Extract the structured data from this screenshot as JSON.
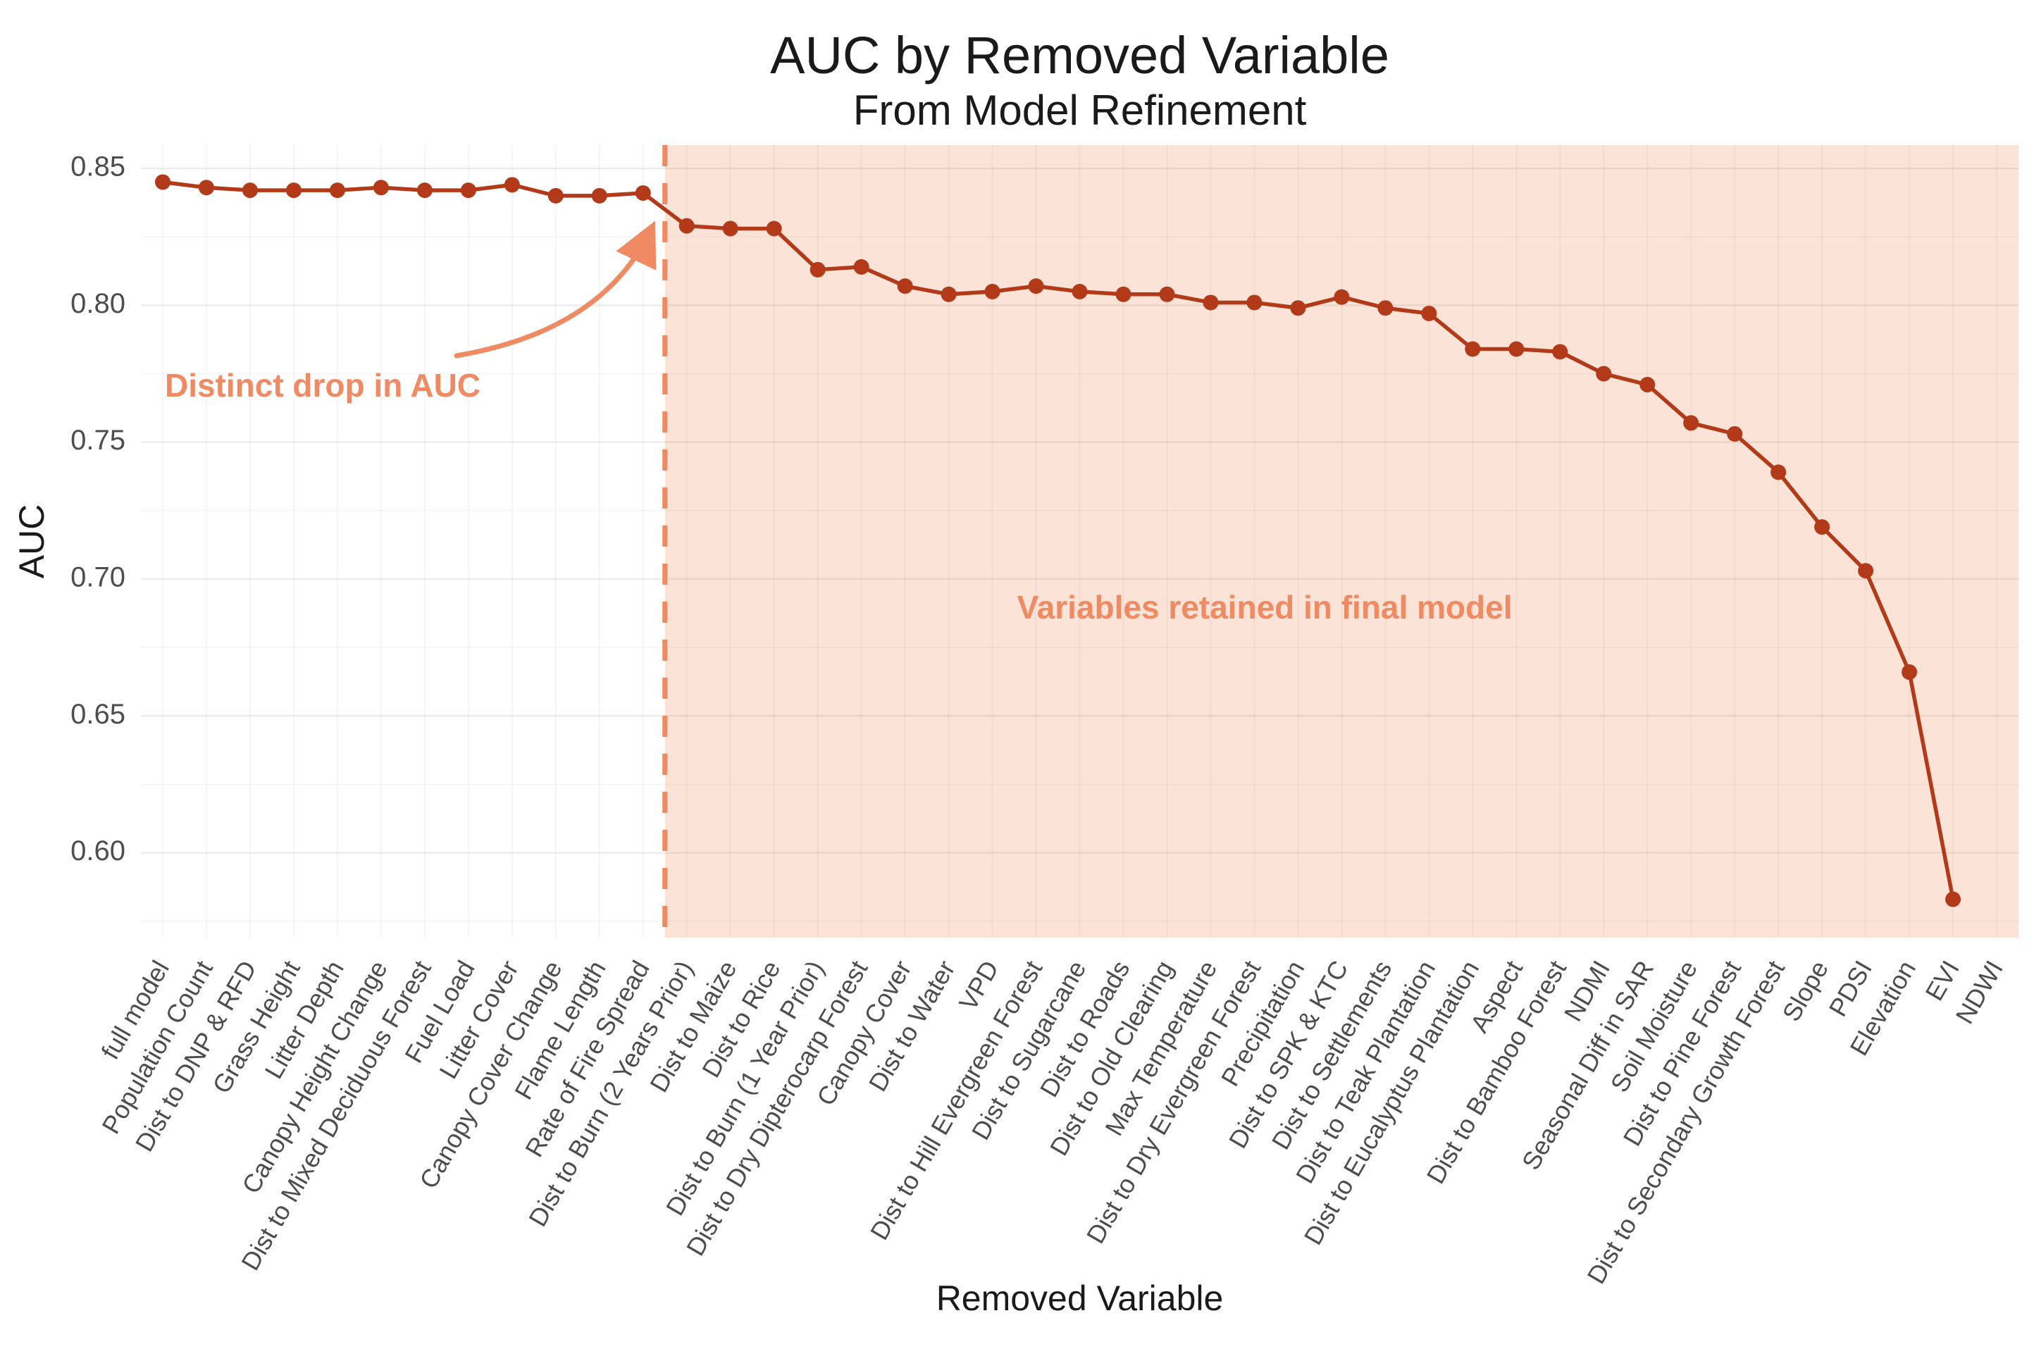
{
  "chart_data": {
    "type": "line",
    "title": "AUC by Removed Variable",
    "subtitle": "From Model Refinement",
    "xlabel": "Removed Variable",
    "ylabel": "AUC",
    "ylim": [
      0.569,
      0.8585
    ],
    "yticks": [
      0.6,
      0.65,
      0.7,
      0.75,
      0.8,
      0.85
    ],
    "ytick_labels": [
      "0.60",
      "0.65",
      "0.70",
      "0.75",
      "0.80",
      "0.85"
    ],
    "yminor": [
      0.575,
      0.625,
      0.675,
      0.725,
      0.775,
      0.825
    ],
    "grid": true,
    "legend": "none",
    "categories": [
      "full model",
      "Population Count",
      "Dist to DNP & RFD",
      "Grass Height",
      "Litter Depth",
      "Canopy Height Change",
      "Dist to Mixed Deciduous Forest",
      "Fuel Load",
      "Litter Cover",
      "Canopy Cover Change",
      "Flame Length",
      "Rate of Fire Spread",
      "Dist to Burn (2 Years Prior)",
      "Dist to Maize",
      "Dist to Rice",
      "Dist to Burn (1 Year Prior)",
      "Dist to Dry Dipterocarp Forest",
      "Canopy Cover",
      "Dist to Water",
      "VPD",
      "Dist to Hill Evergreen Forest",
      "Dist to Sugarcane",
      "Dist to Roads",
      "Dist to Old Clearing",
      "Max Temperature",
      "Dist to Dry Evergreen Forest",
      "Precipitation",
      "Dist to SPK & KTC",
      "Dist to Settlements",
      "Dist to Teak Plantation",
      "Dist to Eucalyptus Plantation",
      "Aspect",
      "Dist to Bamboo Forest",
      "NDMI",
      "Seasonal Diff in SAR",
      "Soil Moisture",
      "Dist to Pine Forest",
      "Dist to Secondary Growth Forest",
      "Slope",
      "PDSI",
      "Elevation",
      "EVI",
      "NDWI"
    ],
    "values": [
      0.845,
      0.843,
      0.842,
      0.842,
      0.842,
      0.843,
      0.842,
      0.842,
      0.844,
      0.84,
      0.84,
      0.841,
      0.829,
      0.828,
      0.828,
      0.813,
      0.814,
      0.807,
      0.804,
      0.805,
      0.807,
      0.805,
      0.804,
      0.804,
      0.801,
      0.801,
      0.799,
      0.803,
      0.799,
      0.797,
      0.784,
      0.784,
      0.783,
      0.775,
      0.771,
      0.757,
      0.753,
      0.739,
      0.719,
      0.703,
      0.666,
      0.583,
      null
    ],
    "threshold_after_index": 11,
    "annotations": {
      "drop": {
        "text": "Distinct drop in AUC"
      },
      "retained": {
        "text": "Variables retained in final model"
      }
    },
    "colors": {
      "line": "#b23a18",
      "point": "#b23a18",
      "dashed_line": "#f08a63",
      "region_fill": "#fbe4d7",
      "annotation_text": "#f08a63",
      "axis_text": "#4d4d4d",
      "title_text": "#1a1a1a",
      "grid_major": "rgba(0,0,0,0.07)",
      "grid_minor": "rgba(0,0,0,0.04)",
      "background": "#ffffff"
    }
  }
}
